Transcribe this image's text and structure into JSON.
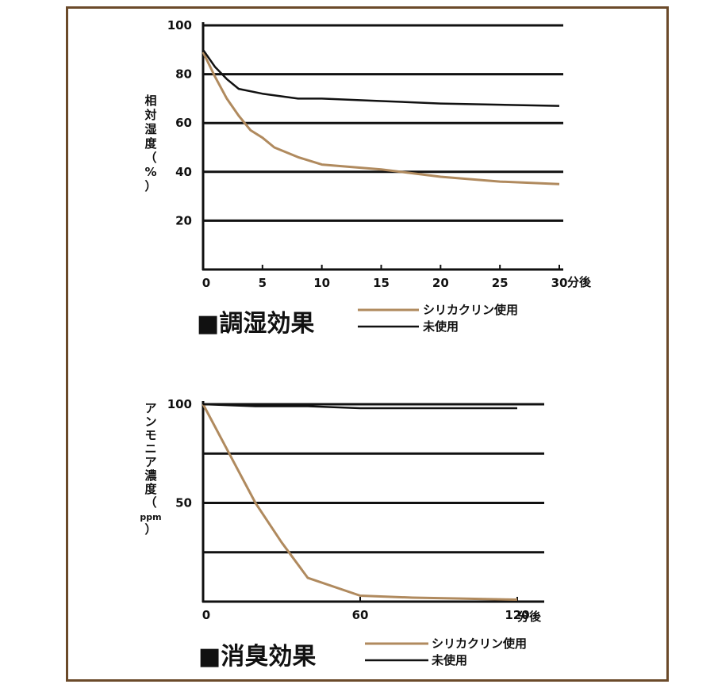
{
  "colors": {
    "treated": "#b08a5e",
    "untreated": "#111111",
    "frame": "#6b4a2a"
  },
  "chart_data": [
    {
      "type": "line",
      "title": "■調湿効果",
      "ylabel_chars": [
        "相",
        "対",
        "湿",
        "度",
        "（",
        "%",
        "）"
      ],
      "x_unit": "分後",
      "xlim": [
        0,
        30
      ],
      "ylim": [
        0,
        100
      ],
      "xticks": [
        0,
        5,
        10,
        15,
        20,
        25,
        30
      ],
      "yticks": [
        20,
        40,
        60,
        80,
        100
      ],
      "grid": true,
      "legend_position": "below-right",
      "series": [
        {
          "name": "シリカクリン使用",
          "color_key": "treated",
          "x": [
            0,
            1,
            2,
            3,
            4,
            5,
            6,
            8,
            10,
            15,
            20,
            25,
            30
          ],
          "y": [
            89,
            79,
            70,
            63,
            57,
            54,
            50,
            46,
            43,
            41,
            38,
            36,
            35
          ]
        },
        {
          "name": "未使用",
          "color_key": "untreated",
          "x": [
            0,
            1,
            2,
            3,
            5,
            8,
            10,
            15,
            20,
            25,
            30
          ],
          "y": [
            90,
            83,
            78,
            74,
            72,
            70,
            70,
            69,
            68,
            67.5,
            67
          ]
        }
      ]
    },
    {
      "type": "line",
      "title": "■消臭効果",
      "ylabel_chars": [
        "ア",
        "ン",
        "モ",
        "ニ",
        "ア",
        "濃",
        "度",
        "（",
        "ppm",
        "）"
      ],
      "x_unit": "分後",
      "xlim": [
        0,
        130
      ],
      "ylim": [
        0,
        100
      ],
      "xticks": [
        0,
        60,
        120
      ],
      "yticks": [
        50,
        100
      ],
      "gridlines": [
        25,
        50,
        75,
        100
      ],
      "grid": true,
      "legend_position": "below-right",
      "series": [
        {
          "name": "シリカクリン使用",
          "color_key": "treated",
          "x": [
            0,
            10,
            20,
            30,
            40,
            60,
            80,
            100,
            120
          ],
          "y": [
            100,
            75,
            50,
            30,
            12,
            3,
            2,
            1.5,
            1
          ]
        },
        {
          "name": "未使用",
          "color_key": "untreated",
          "x": [
            0,
            20,
            40,
            60,
            80,
            100,
            120
          ],
          "y": [
            100,
            99,
            99,
            98,
            98,
            98,
            98
          ]
        }
      ]
    }
  ]
}
